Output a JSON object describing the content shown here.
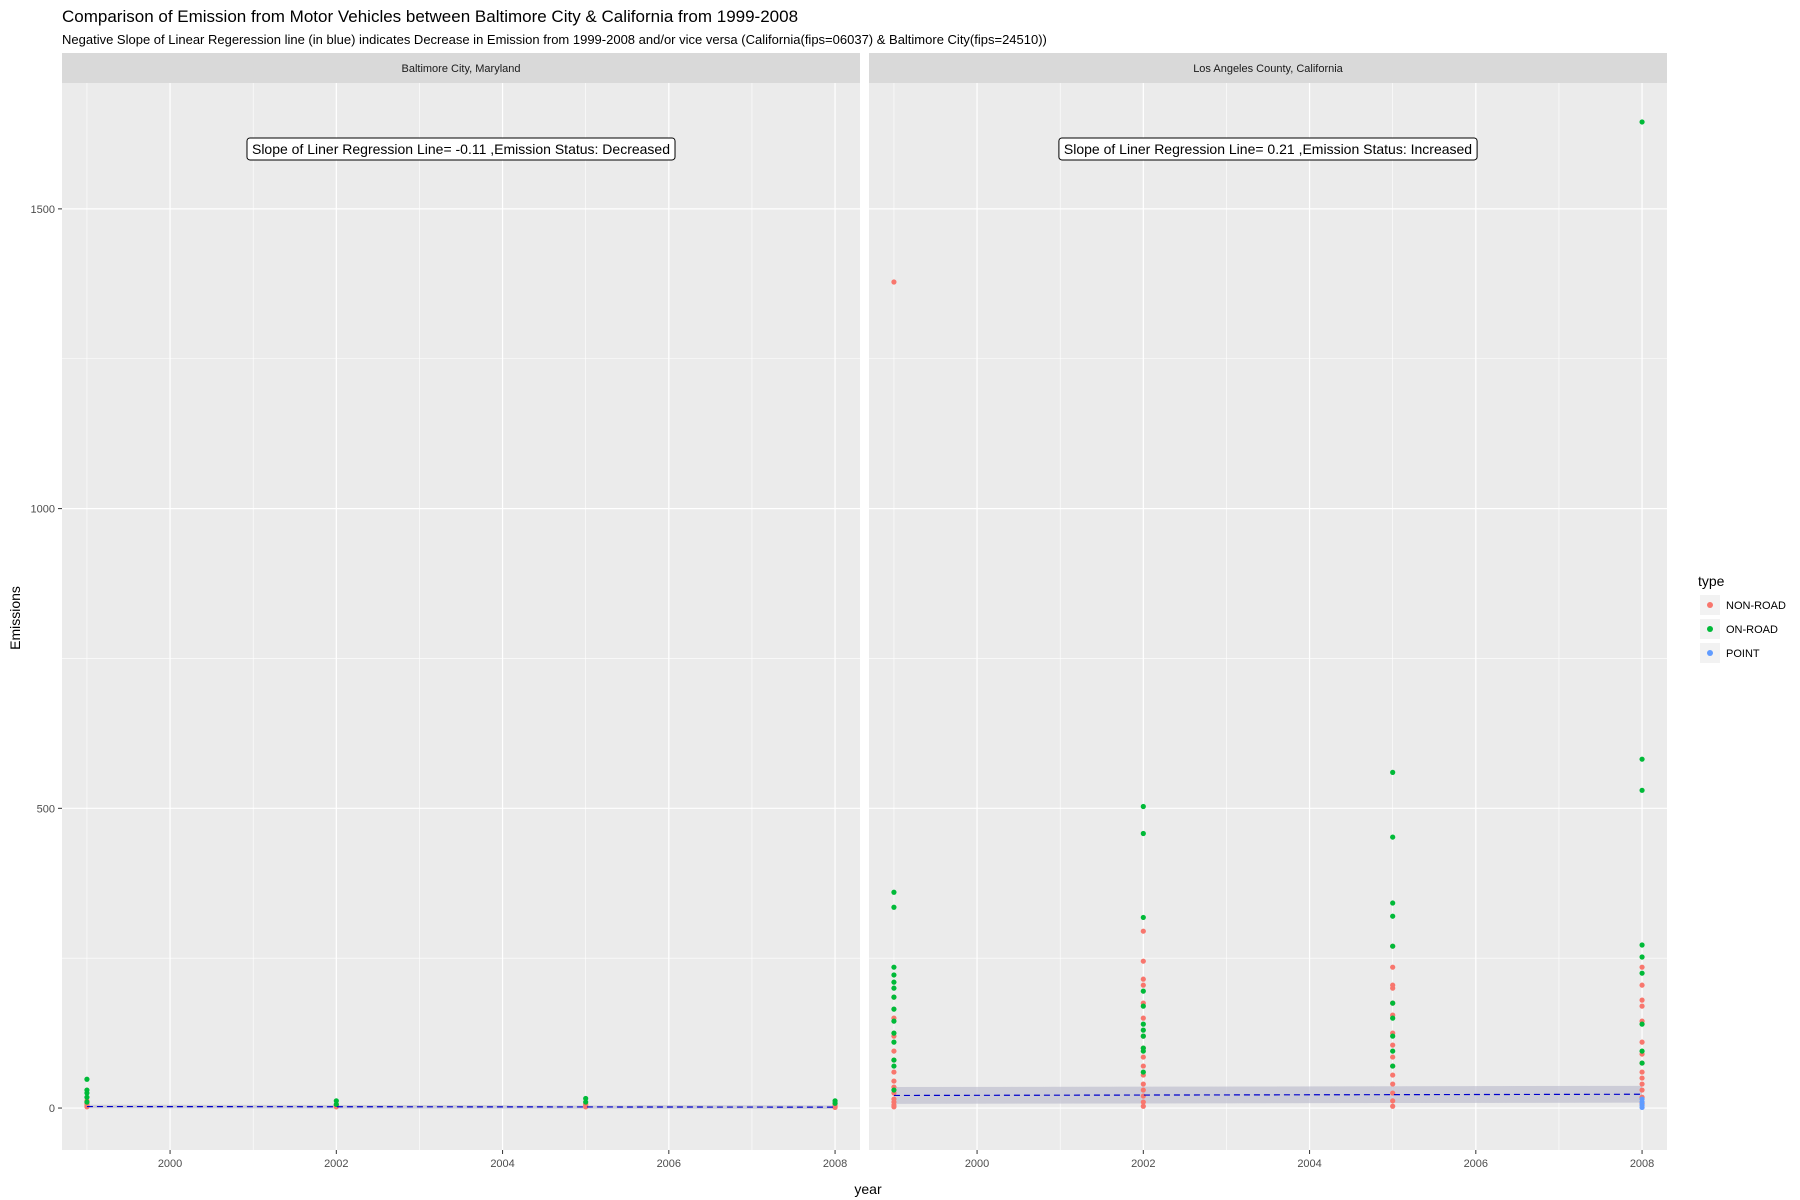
{
  "title": "Comparison of Emission from Motor Vehicles between Baltimore City & California from 1999-2008",
  "subtitle": "Negative Slope of Linear Regeression line (in blue) indicates Decrease in Emission from 1999-2008 and/or vice versa (California(fips=06037) & Baltimore City(fips=24510))",
  "colors": {
    "NON-ROAD": "#F8766D",
    "ON-ROAD": "#00BA38",
    "POINT": "#619CFF",
    "panel_bg": "#EBEBEB",
    "strip_bg": "#D9D9D9",
    "grid": "#FFFFFF",
    "regression": "#0000CC",
    "ribbon": "#BFBFCF"
  },
  "chart_data": {
    "type": "scatter",
    "xlabel": "year",
    "ylabel": "Emissions",
    "xlim": [
      1998.7,
      2008.3
    ],
    "ylim": [
      -70,
      1710
    ],
    "x_ticks": [
      2000,
      2002,
      2004,
      2006,
      2008
    ],
    "y_ticks": [
      0,
      500,
      1000,
      1500
    ],
    "x_tick_labels": [
      "2000",
      "2002",
      "2004",
      "2006",
      "2008"
    ],
    "y_tick_labels": [
      "0",
      "500",
      "1000",
      "1500"
    ],
    "grid": true,
    "legend": {
      "title": "type",
      "position": "right",
      "entries": [
        "NON-ROAD",
        "ON-ROAD",
        "POINT"
      ]
    },
    "panels": [
      {
        "strip": "Baltimore City, Maryland",
        "annotation": "Slope of Liner Regression Line= -0.11 ,Emission Status: Decreased",
        "regression": {
          "x": [
            1999,
            2008
          ],
          "y": [
            2.5,
            1.5
          ]
        },
        "series": [
          {
            "name": "NON-ROAD",
            "x": [
              1999,
              1999,
              1999,
              1999,
              2002,
              2002,
              2002,
              2005,
              2005,
              2005,
              2008,
              2008,
              2008
            ],
            "y": [
              12,
              8,
              5,
              2,
              6,
              4,
              2,
              7,
              5,
              2,
              5,
              3,
              1
            ]
          },
          {
            "name": "ON-ROAD",
            "x": [
              1999,
              1999,
              1999,
              1999,
              1999,
              2002,
              2002,
              2005,
              2005,
              2008,
              2008
            ],
            "y": [
              48,
              30,
              25,
              18,
              10,
              12,
              6,
              16,
              10,
              12,
              8
            ]
          },
          {
            "name": "POINT",
            "x": [],
            "y": []
          }
        ]
      },
      {
        "strip": "Los Angeles County, California",
        "annotation": "Slope of Liner Regression Line= 0.21 ,Emission Status: Increased",
        "regression": {
          "x": [
            1999,
            2008
          ],
          "y": [
            21,
            23
          ]
        },
        "series": [
          {
            "name": "NON-ROAD",
            "x": [
              1999,
              1999,
              1999,
              1999,
              1999,
              1999,
              1999,
              1999,
              1999,
              1999,
              1999,
              1999,
              1999,
              1999,
              2002,
              2002,
              2002,
              2002,
              2002,
              2002,
              2002,
              2002,
              2002,
              2002,
              2002,
              2002,
              2002,
              2002,
              2002,
              2002,
              2005,
              2005,
              2005,
              2005,
              2005,
              2005,
              2005,
              2005,
              2005,
              2005,
              2005,
              2005,
              2005,
              2005,
              2005,
              2008,
              2008,
              2008,
              2008,
              2008,
              2008,
              2008,
              2008,
              2008,
              2008,
              2008,
              2008,
              2008,
              2008
            ],
            "y": [
              1378,
              185,
              150,
              120,
              95,
              80,
              60,
              45,
              35,
              25,
              15,
              10,
              5,
              2,
              295,
              245,
              215,
              205,
              175,
              150,
              120,
              100,
              85,
              70,
              55,
              40,
              30,
              20,
              10,
              3,
              270,
              235,
              205,
              200,
              175,
              155,
              125,
              105,
              85,
              70,
              55,
              40,
              25,
              12,
              3,
              235,
              205,
              180,
              170,
              145,
              110,
              90,
              75,
              60,
              50,
              40,
              30,
              18,
              8
            ]
          },
          {
            "name": "ON-ROAD",
            "x": [
              1999,
              1999,
              1999,
              1999,
              1999,
              1999,
              1999,
              1999,
              1999,
              1999,
              1999,
              1999,
              1999,
              1999,
              2002,
              2002,
              2002,
              2002,
              2002,
              2002,
              2002,
              2002,
              2002,
              2002,
              2002,
              2005,
              2005,
              2005,
              2005,
              2005,
              2005,
              2005,
              2005,
              2005,
              2005,
              2008,
              2008,
              2008,
              2008,
              2008,
              2008,
              2008,
              2008,
              2008
            ],
            "y": [
              360,
              335,
              235,
              222,
              210,
              200,
              185,
              165,
              145,
              125,
              110,
              80,
              70,
              30,
              503,
              458,
              318,
              195,
              170,
              140,
              130,
              120,
              100,
              95,
              60,
              560,
              452,
              342,
              320,
              270,
              175,
              150,
              120,
              95,
              70,
              1645,
              582,
              530,
              272,
              252,
              225,
              140,
              95,
              75
            ]
          },
          {
            "name": "POINT",
            "x": [
              2008,
              2008,
              2008,
              2008
            ],
            "y": [
              1,
              5,
              10,
              15
            ]
          }
        ]
      }
    ]
  }
}
